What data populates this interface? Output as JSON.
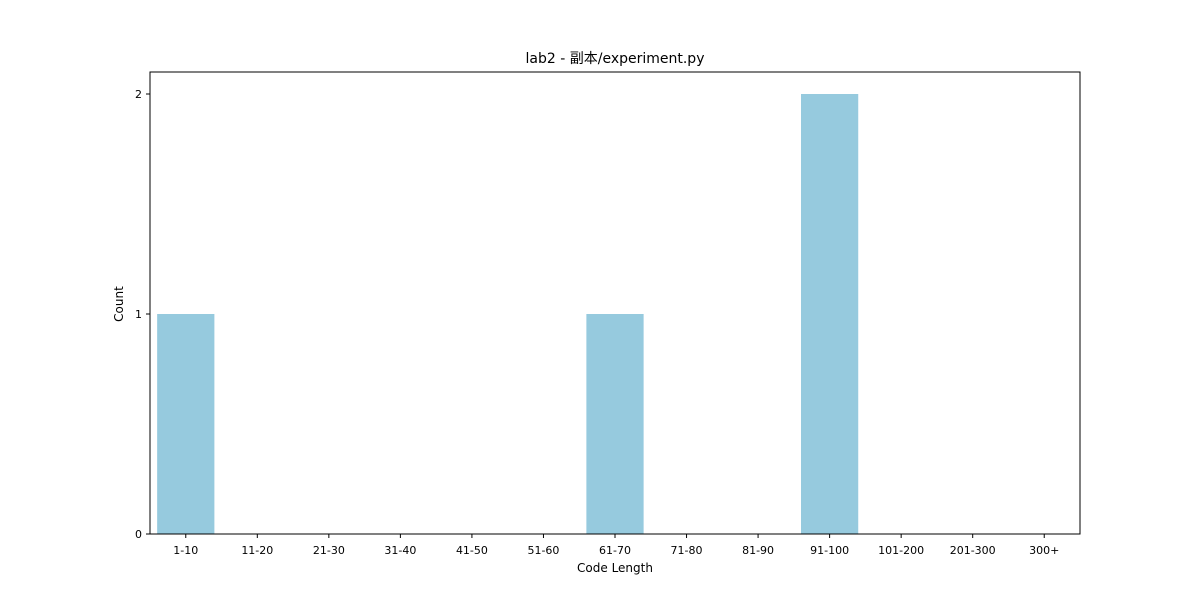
{
  "chart_data": {
    "type": "bar",
    "title": "lab2 - 副本/experiment.py",
    "xlabel": "Code Length",
    "ylabel": "Count",
    "categories": [
      "1-10",
      "11-20",
      "21-30",
      "31-40",
      "41-50",
      "51-60",
      "61-70",
      "71-80",
      "81-90",
      "91-100",
      "101-200",
      "201-300",
      "300+"
    ],
    "values": [
      1,
      0,
      0,
      0,
      0,
      0,
      1,
      0,
      0,
      2,
      0,
      0,
      0
    ],
    "ylim": [
      0,
      2.1
    ],
    "yticks": [
      0,
      1,
      2
    ],
    "bar_color": "#96cade",
    "grid": false,
    "legend": "none"
  }
}
